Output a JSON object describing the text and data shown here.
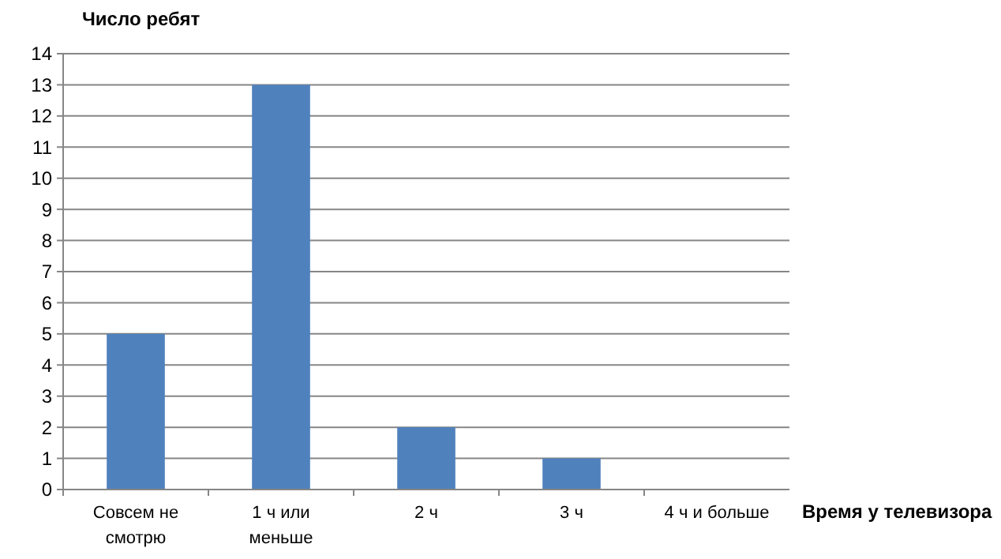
{
  "chart_data": {
    "type": "bar",
    "ylabel": "Число ребят",
    "xlabel": "Время у телевизора",
    "categories": [
      "Совсем не смотрю",
      "1 ч или меньше",
      "2 ч",
      "3 ч",
      "4 ч и больше"
    ],
    "values": [
      5,
      13,
      2,
      1,
      0
    ],
    "color": "#4f81bd",
    "ylim": [
      0,
      14
    ],
    "yticks": [
      0,
      1,
      2,
      3,
      4,
      5,
      6,
      7,
      8,
      9,
      10,
      11,
      12,
      13,
      14
    ],
    "grid": "y"
  }
}
